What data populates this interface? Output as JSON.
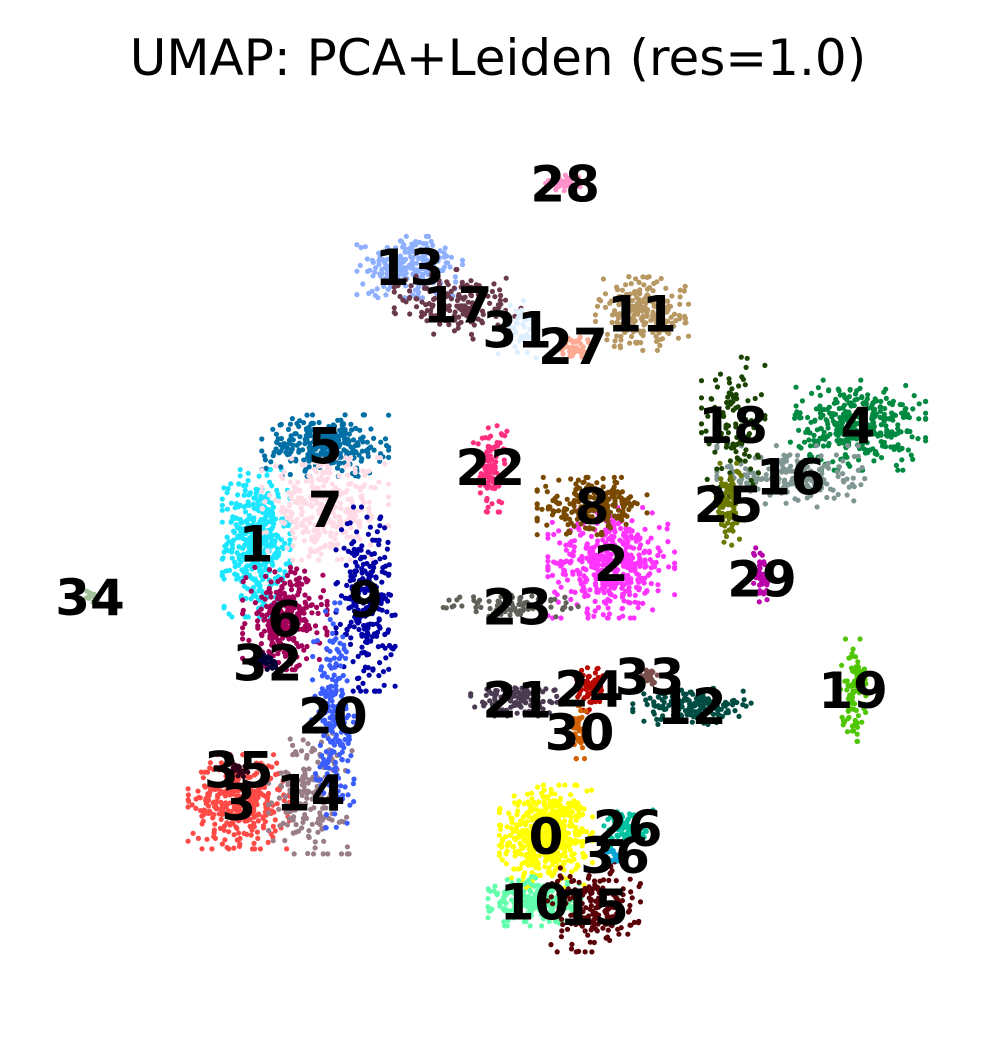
{
  "chart_data": {
    "type": "scatter",
    "title": "UMAP: PCA+Leiden (res=1.0)",
    "xlabel": "",
    "ylabel": "",
    "axes_visible": false,
    "grid": false,
    "legend": "on data",
    "xlim": [
      0,
      10
    ],
    "ylim": [
      0,
      10
    ],
    "clusters": [
      {
        "label": "0",
        "color": "#ffff00",
        "x": 5.5,
        "y": 2.03,
        "sx": 0.22,
        "sy": 0.25,
        "n": 520
      },
      {
        "label": "1",
        "color": "#1ce6ff",
        "x": 2.48,
        "y": 5.18,
        "sx": 0.16,
        "sy": 0.36,
        "n": 420
      },
      {
        "label": "2",
        "color": "#ff34ff",
        "x": 6.18,
        "y": 4.97,
        "sx": 0.3,
        "sy": 0.27,
        "n": 430
      },
      {
        "label": "3",
        "color": "#ff4a46",
        "x": 2.3,
        "y": 2.4,
        "sx": 0.24,
        "sy": 0.23,
        "n": 360
      },
      {
        "label": "4",
        "color": "#008941",
        "x": 8.75,
        "y": 6.45,
        "sx": 0.32,
        "sy": 0.22,
        "n": 360
      },
      {
        "label": "5",
        "color": "#006fa6",
        "x": 3.2,
        "y": 6.23,
        "sx": 0.3,
        "sy": 0.15,
        "n": 300
      },
      {
        "label": "6",
        "color": "#a30059",
        "x": 2.78,
        "y": 4.37,
        "sx": 0.2,
        "sy": 0.25,
        "n": 300
      },
      {
        "label": "7",
        "color": "#ffdbe5",
        "x": 3.2,
        "y": 5.55,
        "sx": 0.3,
        "sy": 0.25,
        "n": 320
      },
      {
        "label": "8",
        "color": "#7a4900",
        "x": 5.98,
        "y": 5.58,
        "sx": 0.26,
        "sy": 0.14,
        "n": 220
      },
      {
        "label": "9",
        "color": "#0000a6",
        "x": 3.62,
        "y": 4.58,
        "sx": 0.14,
        "sy": 0.45,
        "n": 260
      },
      {
        "label": "10",
        "color": "#63ffac",
        "x": 5.38,
        "y": 1.33,
        "sx": 0.22,
        "sy": 0.12,
        "n": 220
      },
      {
        "label": "11",
        "color": "#b79762",
        "x": 6.5,
        "y": 7.65,
        "sx": 0.22,
        "sy": 0.18,
        "n": 220
      },
      {
        "label": "12",
        "color": "#004d43",
        "x": 7.02,
        "y": 3.43,
        "sx": 0.28,
        "sy": 0.09,
        "n": 170
      },
      {
        "label": "13",
        "color": "#8fb0ff",
        "x": 4.08,
        "y": 8.15,
        "sx": 0.25,
        "sy": 0.15,
        "n": 220
      },
      {
        "label": "14",
        "color": "#997d87",
        "x": 3.05,
        "y": 2.5,
        "sx": 0.2,
        "sy": 0.3,
        "n": 180
      },
      {
        "label": "15",
        "color": "#5a0007",
        "x": 6.0,
        "y": 1.27,
        "sx": 0.22,
        "sy": 0.22,
        "n": 200
      },
      {
        "label": "16",
        "color": "#809693",
        "x": 8.05,
        "y": 5.9,
        "sx": 0.35,
        "sy": 0.15,
        "n": 190
      },
      {
        "label": "17",
        "color": "#6a3a4c",
        "x": 4.58,
        "y": 7.75,
        "sx": 0.3,
        "sy": 0.17,
        "n": 170
      },
      {
        "label": "18",
        "color": "#1b4400",
        "x": 7.45,
        "y": 6.45,
        "sx": 0.15,
        "sy": 0.35,
        "n": 120
      },
      {
        "label": "19",
        "color": "#4fc601",
        "x": 8.7,
        "y": 3.6,
        "sx": 0.06,
        "sy": 0.25,
        "n": 90
      },
      {
        "label": "20",
        "color": "#3b5dff",
        "x": 3.28,
        "y": 3.33,
        "sx": 0.1,
        "sy": 0.55,
        "n": 200
      },
      {
        "label": "21",
        "color": "#4a3b53",
        "x": 5.2,
        "y": 3.5,
        "sx": 0.22,
        "sy": 0.08,
        "n": 110
      },
      {
        "label": "22",
        "color": "#ff2f80",
        "x": 4.92,
        "y": 6.0,
        "sx": 0.08,
        "sy": 0.22,
        "n": 100
      },
      {
        "label": "23",
        "color": "#61615a",
        "x": 5.2,
        "y": 4.5,
        "sx": 0.35,
        "sy": 0.06,
        "n": 90
      },
      {
        "label": "24",
        "color": "#ba0900",
        "x": 5.95,
        "y": 3.62,
        "sx": 0.07,
        "sy": 0.12,
        "n": 70
      },
      {
        "label": "25",
        "color": "#6b7900",
        "x": 7.4,
        "y": 5.6,
        "sx": 0.06,
        "sy": 0.2,
        "n": 90
      },
      {
        "label": "26",
        "color": "#00c2a0",
        "x": 6.35,
        "y": 2.12,
        "sx": 0.12,
        "sy": 0.09,
        "n": 80
      },
      {
        "label": "27",
        "color": "#ffaa92",
        "x": 5.78,
        "y": 7.3,
        "sx": 0.1,
        "sy": 0.07,
        "n": 50
      },
      {
        "label": "28",
        "color": "#ff90c9",
        "x": 5.7,
        "y": 9.05,
        "sx": 0.1,
        "sy": 0.04,
        "n": 40
      },
      {
        "label": "29",
        "color": "#b903aa",
        "x": 7.75,
        "y": 4.8,
        "sx": 0.04,
        "sy": 0.15,
        "n": 40
      },
      {
        "label": "30",
        "color": "#d16100",
        "x": 5.85,
        "y": 3.15,
        "sx": 0.04,
        "sy": 0.13,
        "n": 40
      },
      {
        "label": "31",
        "color": "#ddefff",
        "x": 5.2,
        "y": 7.48,
        "sx": 0.1,
        "sy": 0.14,
        "n": 50
      },
      {
        "label": "32",
        "color": "#000035",
        "x": 2.6,
        "y": 3.9,
        "sx": 0.08,
        "sy": 0.05,
        "n": 30
      },
      {
        "label": "33",
        "color": "#7b4f4b",
        "x": 6.58,
        "y": 3.75,
        "sx": 0.05,
        "sy": 0.04,
        "n": 25
      },
      {
        "label": "34",
        "color": "#a1c299",
        "x": 0.75,
        "y": 4.6,
        "sx": 0.04,
        "sy": 0.03,
        "n": 12
      },
      {
        "label": "35",
        "color": "#300018",
        "x": 2.3,
        "y": 2.75,
        "sx": 0.06,
        "sy": 0.04,
        "n": 25
      },
      {
        "label": "36",
        "color": "#0aa6d8",
        "x": 6.22,
        "y": 1.83,
        "sx": 0.05,
        "sy": 0.04,
        "n": 25
      }
    ]
  }
}
